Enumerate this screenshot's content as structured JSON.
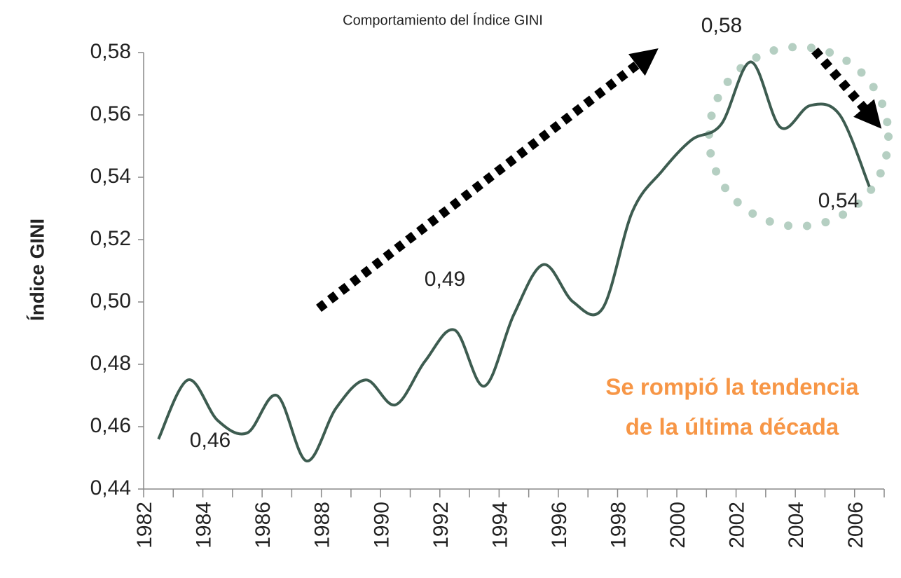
{
  "chart_data": {
    "type": "line",
    "title": "Comportamiento del Índice GINI",
    "y_label": "Índice GINI",
    "categories": [
      "1982",
      null,
      "1984",
      null,
      "1986",
      null,
      "1988",
      null,
      "1990",
      null,
      "1992",
      null,
      "1994",
      null,
      "1996",
      null,
      "1998",
      null,
      "2000",
      null,
      "2002",
      null,
      "2004",
      null,
      "2006"
    ],
    "series": [
      {
        "name": "Índice GINI",
        "color": "#3d5c50",
        "values": [
          0.456,
          0.475,
          0.462,
          0.458,
          0.47,
          0.449,
          0.466,
          0.475,
          0.467,
          0.481,
          0.491,
          0.473,
          0.496,
          0.512,
          0.5,
          0.498,
          0.529,
          0.542,
          0.552,
          0.557,
          0.577,
          0.556,
          0.563,
          0.56,
          0.537
        ]
      }
    ],
    "ylim": [
      0.44,
      0.58
    ],
    "yticks": [
      {
        "value": 0.44,
        "label": "0,44"
      },
      {
        "value": 0.46,
        "label": "0,46"
      },
      {
        "value": 0.48,
        "label": "0,48"
      },
      {
        "value": 0.5,
        "label": "0,50"
      },
      {
        "value": 0.52,
        "label": "0,52"
      },
      {
        "value": 0.54,
        "label": "0,54"
      },
      {
        "value": 0.56,
        "label": "0,56"
      },
      {
        "value": 0.58,
        "label": "0,58"
      }
    ],
    "annotations": [
      "0,46",
      "0,49",
      "0,58",
      "0,54",
      "Se rompió la tendencia",
      "de la última década"
    ]
  }
}
